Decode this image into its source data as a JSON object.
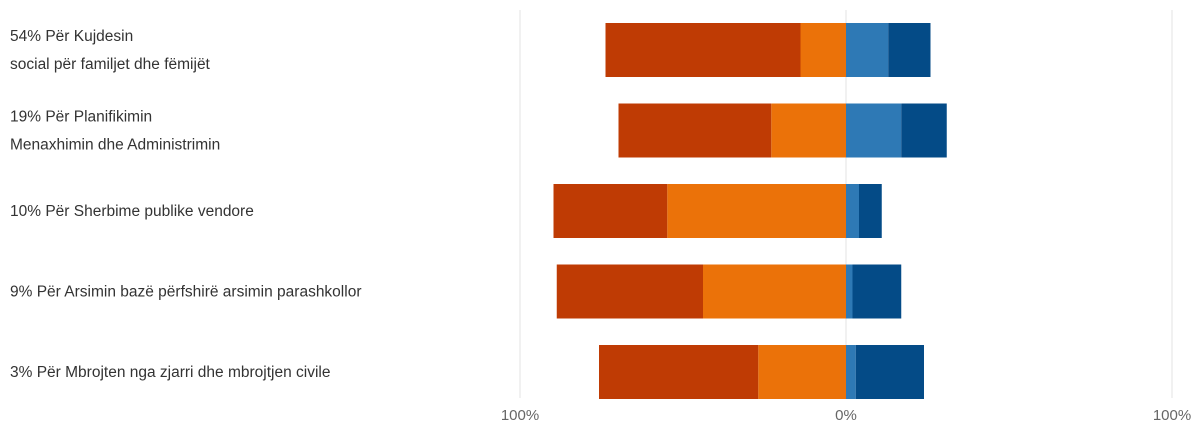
{
  "chart_data": {
    "type": "bar",
    "orientation": "horizontal-diverging",
    "categories": [
      [
        "54% Për Kujdesin",
        "social për familjet dhe fëmijët"
      ],
      [
        "19% Për Planifikimin",
        "Menaxhimin dhe Administrimin"
      ],
      [
        "10% Për Sherbime publike vendore"
      ],
      [
        "9% Për Arsimin bazë përfshirë arsimin parashkollor"
      ],
      [
        "3% Për Mbrojten nga zjarri dhe mbrojtjen civile"
      ]
    ],
    "series": [
      {
        "values": [
          -60,
          -47,
          -35,
          -45,
          -49
        ],
        "color": "#bf3b04"
      },
      {
        "values": [
          -14,
          -23,
          -55,
          -44,
          -27
        ],
        "color": "#eb7209"
      },
      {
        "values": [
          13,
          17,
          4,
          2,
          3
        ],
        "color": "#2e79b5"
      },
      {
        "values": [
          13,
          14,
          7,
          15,
          21
        ],
        "color": "#044b87"
      }
    ],
    "xlim": [
      -100,
      100
    ],
    "x_tick_labels": [
      "100%",
      "0%",
      "100%"
    ],
    "grid": true,
    "legend": "none"
  }
}
